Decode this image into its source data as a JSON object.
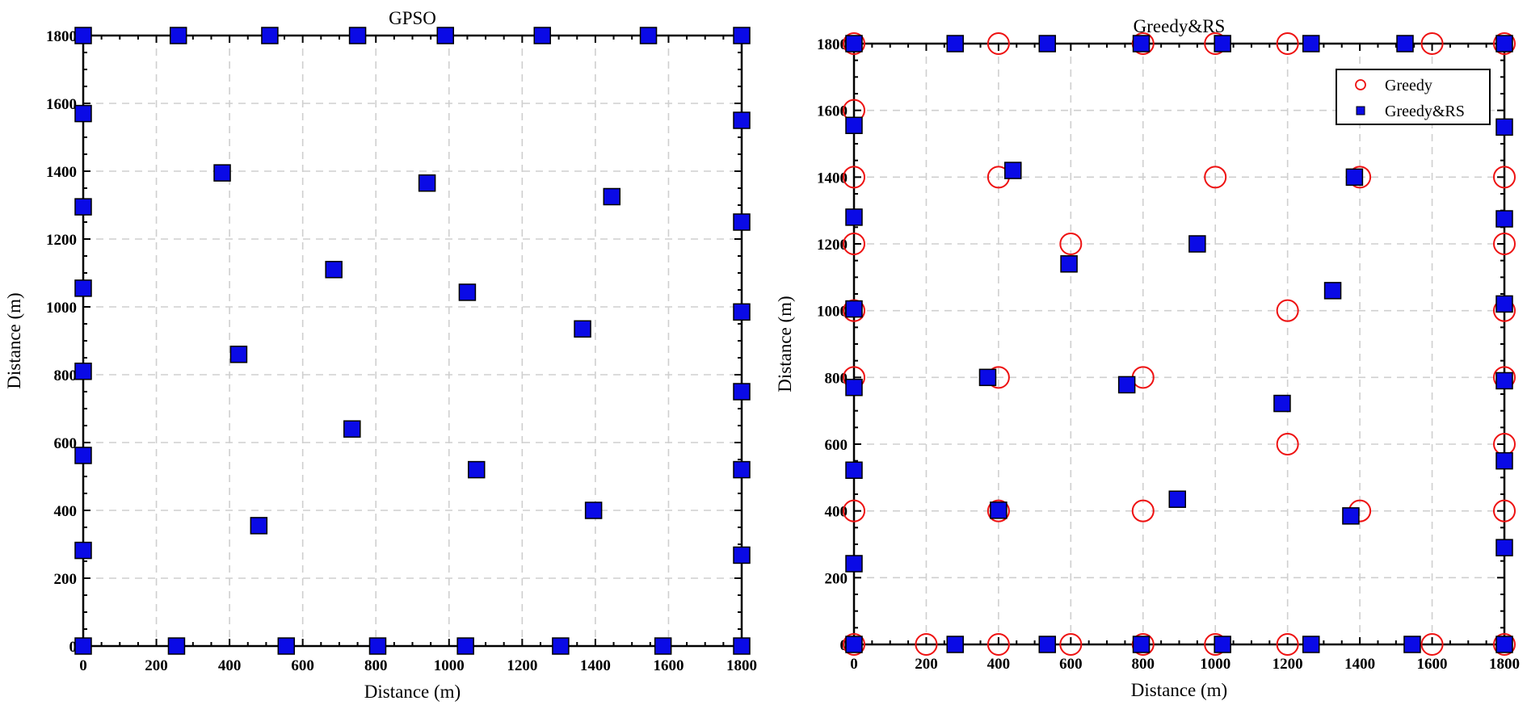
{
  "colors": {
    "marker_fill": "#0a0ae6",
    "marker_edge": "#000000",
    "greedy_circle": "#ee1111",
    "grid": "#cfcfcf",
    "axis": "#000000"
  },
  "chart_data": [
    {
      "type": "scatter",
      "title": "GPSO",
      "xlabel": "Distance (m)",
      "ylabel": "Distance (m)",
      "xlim": [
        0,
        1800
      ],
      "ylim": [
        0,
        1800
      ],
      "x_ticks": [
        0,
        200,
        400,
        600,
        800,
        1000,
        1200,
        1400,
        1600,
        1800
      ],
      "y_ticks": [
        0,
        200,
        400,
        600,
        800,
        1000,
        1200,
        1400,
        1600,
        1800
      ],
      "grid": true,
      "legend": null,
      "series": [
        {
          "marker": "square",
          "color": "#0a0ae6",
          "points": [
            [
              0,
              1800
            ],
            [
              260,
              1800
            ],
            [
              510,
              1800
            ],
            [
              750,
              1800
            ],
            [
              990,
              1800
            ],
            [
              1255,
              1800
            ],
            [
              1545,
              1800
            ],
            [
              1800,
              1800
            ],
            [
              0,
              1570
            ],
            [
              0,
              1295
            ],
            [
              0,
              1055
            ],
            [
              0,
              810
            ],
            [
              0,
              562
            ],
            [
              0,
              282
            ],
            [
              0,
              0
            ],
            [
              255,
              0
            ],
            [
              555,
              0
            ],
            [
              805,
              0
            ],
            [
              1045,
              0
            ],
            [
              1305,
              0
            ],
            [
              1585,
              0
            ],
            [
              1800,
              0
            ],
            [
              1800,
              1550
            ],
            [
              1800,
              1250
            ],
            [
              1800,
              985
            ],
            [
              1800,
              750
            ],
            [
              1800,
              520
            ],
            [
              1800,
              268
            ],
            [
              380,
              1395
            ],
            [
              940,
              1365
            ],
            [
              1445,
              1325
            ],
            [
              685,
              1110
            ],
            [
              1050,
              1043
            ],
            [
              1365,
              935
            ],
            [
              425,
              860
            ],
            [
              735,
              640
            ],
            [
              1075,
              520
            ],
            [
              480,
              355
            ],
            [
              1395,
              400
            ]
          ]
        }
      ]
    },
    {
      "type": "scatter",
      "title": "Greedy&RS",
      "xlabel": "Distance (m)",
      "ylabel": "Distance (m)",
      "xlim": [
        0,
        1800
      ],
      "ylim": [
        0,
        1800
      ],
      "x_ticks": [
        0,
        200,
        400,
        600,
        800,
        1000,
        1200,
        1400,
        1600,
        1800
      ],
      "y_ticks": [
        0,
        200,
        400,
        600,
        800,
        1000,
        1200,
        1400,
        1600,
        1800
      ],
      "grid": true,
      "legend": "top-right",
      "series": [
        {
          "name": "Greedy",
          "marker": "circle",
          "color": "#ee1111",
          "points": [
            [
              0,
              1800
            ],
            [
              400,
              1800
            ],
            [
              800,
              1800
            ],
            [
              1000,
              1800
            ],
            [
              1200,
              1800
            ],
            [
              1600,
              1800
            ],
            [
              1800,
              1800
            ],
            [
              0,
              1600
            ],
            [
              0,
              1400
            ],
            [
              400,
              1400
            ],
            [
              1000,
              1400
            ],
            [
              1400,
              1400
            ],
            [
              1800,
              1400
            ],
            [
              0,
              1200
            ],
            [
              600,
              1200
            ],
            [
              1800,
              1200
            ],
            [
              0,
              1000
            ],
            [
              1200,
              1000
            ],
            [
              1800,
              1000
            ],
            [
              0,
              800
            ],
            [
              400,
              800
            ],
            [
              800,
              800
            ],
            [
              1800,
              800
            ],
            [
              1200,
              600
            ],
            [
              1800,
              600
            ],
            [
              0,
              400
            ],
            [
              400,
              400
            ],
            [
              800,
              400
            ],
            [
              1400,
              400
            ],
            [
              1800,
              400
            ],
            [
              0,
              0
            ],
            [
              200,
              0
            ],
            [
              400,
              0
            ],
            [
              600,
              0
            ],
            [
              800,
              0
            ],
            [
              1000,
              0
            ],
            [
              1200,
              0
            ],
            [
              1600,
              0
            ],
            [
              1800,
              0
            ]
          ]
        },
        {
          "name": "Greedy&RS",
          "marker": "square",
          "color": "#0a0ae6",
          "points": [
            [
              0,
              1800
            ],
            [
              280,
              1800
            ],
            [
              535,
              1800
            ],
            [
              795,
              1800
            ],
            [
              1020,
              1800
            ],
            [
              1265,
              1800
            ],
            [
              1525,
              1800
            ],
            [
              1800,
              1800
            ],
            [
              0,
              1555
            ],
            [
              0,
              1280
            ],
            [
              0,
              1005
            ],
            [
              0,
              770
            ],
            [
              0,
              522
            ],
            [
              0,
              242
            ],
            [
              0,
              0
            ],
            [
              280,
              0
            ],
            [
              535,
              0
            ],
            [
              795,
              0
            ],
            [
              1020,
              0
            ],
            [
              1265,
              0
            ],
            [
              1545,
              0
            ],
            [
              1800,
              0
            ],
            [
              1800,
              1550
            ],
            [
              1800,
              1275
            ],
            [
              1800,
              1020
            ],
            [
              1800,
              790
            ],
            [
              1800,
              550
            ],
            [
              1800,
              290
            ],
            [
              440,
              1420
            ],
            [
              1385,
              1400
            ],
            [
              950,
              1200
            ],
            [
              595,
              1140
            ],
            [
              1325,
              1060
            ],
            [
              370,
              800
            ],
            [
              755,
              778
            ],
            [
              1185,
              722
            ],
            [
              895,
              435
            ],
            [
              400,
              402
            ],
            [
              1375,
              385
            ]
          ]
        }
      ]
    }
  ]
}
